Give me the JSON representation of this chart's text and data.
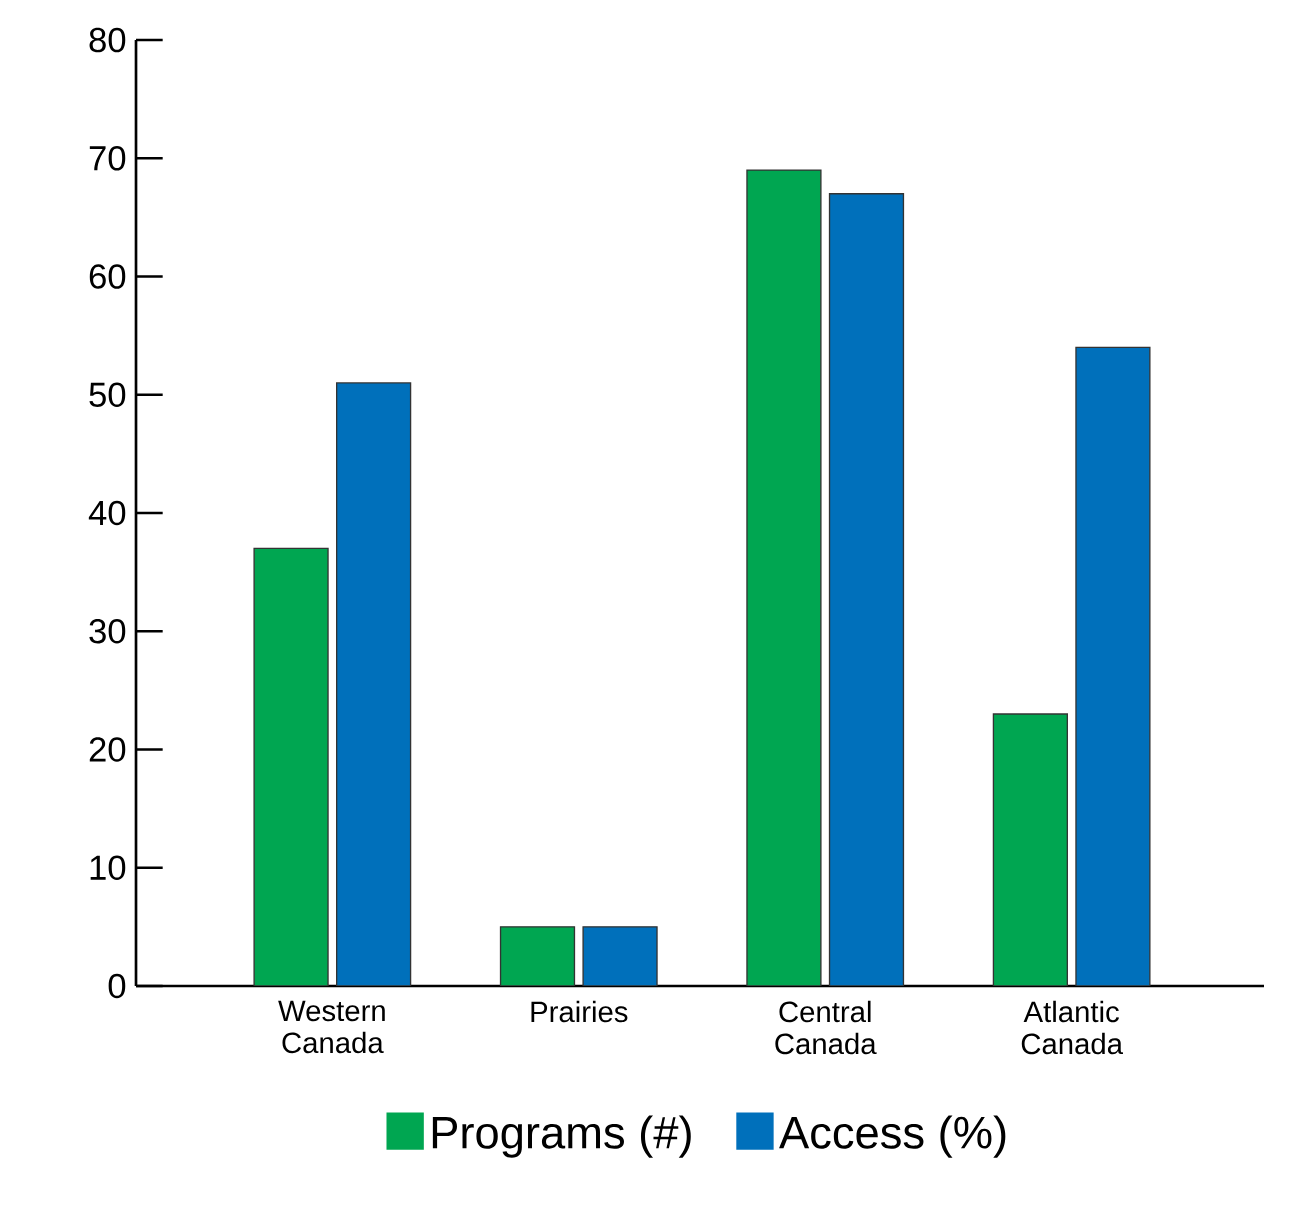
{
  "chart_data": {
    "type": "bar",
    "categories": [
      "Western\nCanada",
      "Prairies",
      "Central\nCanada",
      "Atlantic\nCanada"
    ],
    "series": [
      {
        "name": "Programs (#)",
        "color": "#00a651",
        "values": [
          37,
          5,
          69,
          23
        ]
      },
      {
        "name": "Access (%)",
        "color": "#0070bb",
        "values": [
          51,
          5,
          67,
          54
        ]
      }
    ],
    "ylim": [
      0,
      80
    ],
    "yticks": [
      0,
      10,
      20,
      30,
      40,
      50,
      60,
      70,
      80
    ],
    "legend": "bottom"
  }
}
